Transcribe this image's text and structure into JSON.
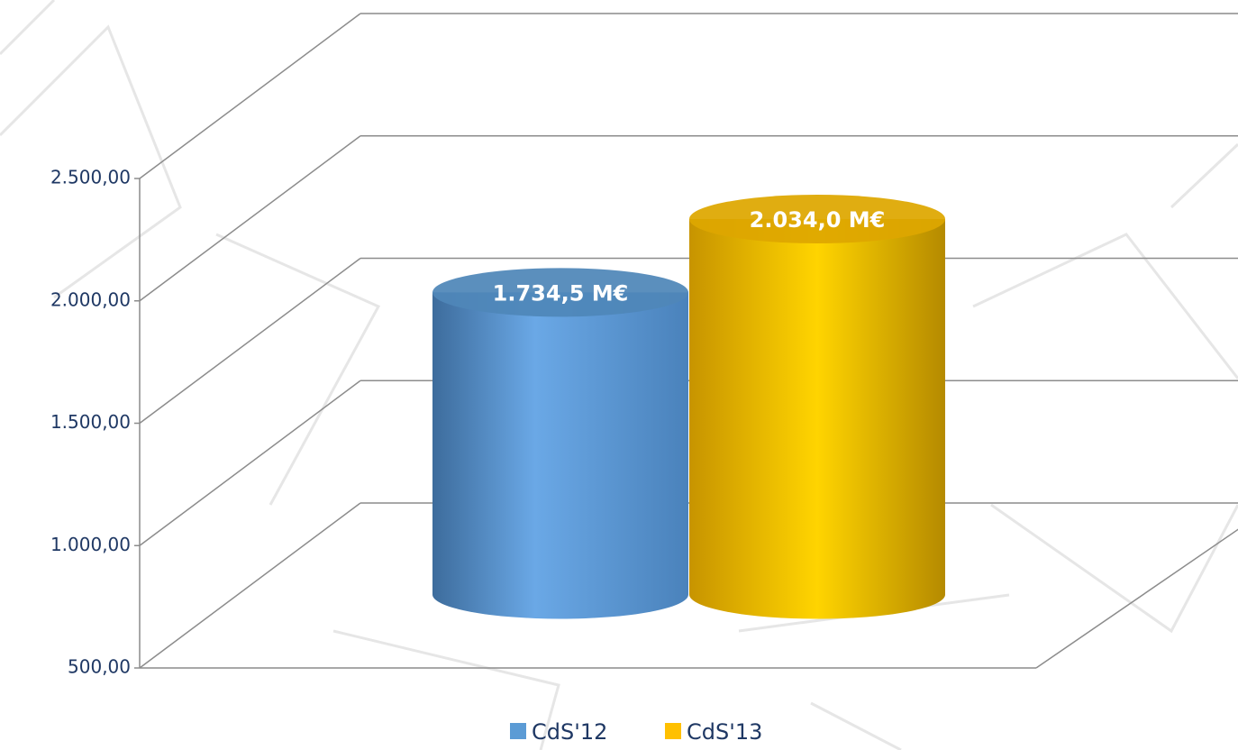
{
  "chart_data": {
    "type": "cylinder-bar",
    "categories": [
      null
    ],
    "series": [
      {
        "name": "CdS'12",
        "color": "#5b9bd5",
        "values": [
          1734.5
        ],
        "value_labels": [
          "1.734,5 M€"
        ]
      },
      {
        "name": "CdS'13",
        "color": "#ffc000",
        "values": [
          2034.0
        ],
        "value_labels": [
          "2.034,0 M€"
        ]
      }
    ],
    "ylim": [
      500,
      2500
    ],
    "yticks": [
      {
        "value": 500,
        "label": "500,00"
      },
      {
        "value": 1000,
        "label": "1.000,00"
      },
      {
        "value": 1500,
        "label": "1.500,00"
      },
      {
        "value": 2000,
        "label": "2.000,00"
      },
      {
        "value": 2500,
        "label": "2.500,00"
      }
    ],
    "grid": true
  }
}
